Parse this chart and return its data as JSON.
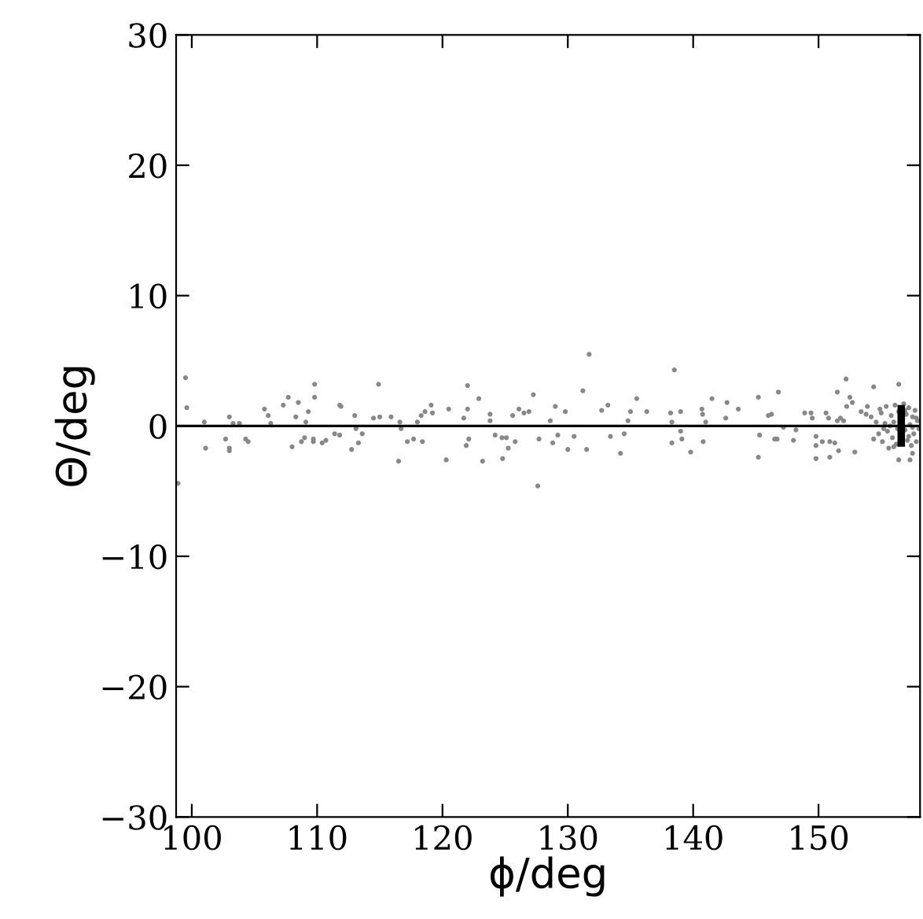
{
  "chart_data": {
    "type": "scatter",
    "xlabel": "ϕ/deg",
    "ylabel": "Θ/deg",
    "xlim": [
      98.75,
      158.1
    ],
    "ylim": [
      -30,
      30
    ],
    "xticks": [
      100,
      110,
      120,
      130,
      140,
      150
    ],
    "yticks": [
      {
        "value": -30,
        "label": "−30"
      },
      {
        "value": -20,
        "label": "−20"
      },
      {
        "value": -10,
        "label": "−10"
      },
      0,
      10,
      20,
      30
    ],
    "grid": false,
    "legend": false,
    "series": [
      {
        "color": "#888888",
        "marker": "circle",
        "x": [
          99.5,
          99.6,
          98.9,
          101.0,
          101.1,
          102.7,
          103.0,
          103.0,
          103.0,
          103.3,
          103.8,
          104.3,
          104.5,
          105.8,
          106.1,
          106.3,
          107.3,
          107.7,
          108.0,
          108.3,
          108.5,
          108.75,
          109.0,
          109.1,
          109.3,
          109.8,
          109.8,
          109.7,
          109.7,
          110.4,
          110.7,
          111.4,
          111.8,
          111.8,
          111.9,
          112.75,
          113.0,
          113.1,
          113.3,
          113.6,
          114.5,
          114.9,
          115.0,
          115.9,
          116.5,
          116.6,
          116.7,
          117.2,
          117.7,
          118.0,
          118.3,
          118.6,
          118.4,
          119.1,
          119.2,
          120.3,
          120.5,
          121.7,
          122.0,
          122.0,
          121.9,
          122.1,
          122.9,
          123.2,
          123.8,
          123.8,
          124.2,
          124.75,
          124.8,
          125.1,
          125.25,
          125.6,
          125.8,
          126.1,
          126.5,
          126.9,
          127.25,
          127.6,
          127.7,
          128.6,
          128.8,
          129.0,
          129.2,
          129.8,
          130.0,
          130.5,
          131.2,
          131.5,
          131.7,
          132.7,
          133.2,
          133.4,
          134.2,
          134.5,
          134.8,
          135.0,
          135.5,
          136.3,
          138.2,
          138.3,
          138.3,
          138.5,
          139.0,
          139.0,
          139.1,
          139.8,
          140.7,
          140.75,
          140.8,
          141.0,
          141.5,
          142.7,
          142.6,
          143.6,
          145.2,
          145.2,
          145.3,
          146.0,
          146.25,
          146.5,
          146.7,
          146.8,
          147.2,
          148.0,
          148.2,
          148.9,
          149.4,
          149.5,
          149.8,
          149.8,
          149.8,
          150.3,
          150.9,
          150.9,
          151.3,
          150.6,
          150.8,
          151.5,
          151.75,
          152.0,
          151.5,
          152.2,
          152.25,
          152.5,
          152.7,
          152.9,
          151.6,
          154.4,
          156.4,
          153.4,
          153.8,
          153.9,
          157.3,
          156.4,
          157.5,
          154.6,
          154.8,
          155.0,
          155.1,
          155.3,
          155.4,
          155.5,
          155.6,
          155.8,
          155.9,
          156.0,
          156.1,
          156.2,
          156.3,
          156.4,
          156.8,
          156.9,
          157.0,
          157.1,
          157.2,
          157.3,
          157.4,
          157.5,
          157.6,
          157.7,
          157.8,
          157.9,
          158.0,
          154.9,
          155.2,
          155.7,
          156.0,
          156.9,
          157.2,
          157.5,
          157.8,
          154.4,
          154.2
        ],
        "values": [
          3.7,
          1.4,
          -4.4,
          0.3,
          -1.7,
          -1.0,
          -1.7,
          -1.9,
          0.7,
          0.2,
          0.2,
          -1.0,
          -1.2,
          1.3,
          0.8,
          0.2,
          1.6,
          2.2,
          -1.6,
          0.7,
          1.8,
          -1.2,
          -0.9,
          0.3,
          1.1,
          3.2,
          2.2,
          -1.0,
          -1.2,
          -1.3,
          -1.1,
          -0.6,
          -0.7,
          1.6,
          1.5,
          -1.8,
          0.8,
          -0.2,
          -1.3,
          -0.6,
          0.6,
          3.2,
          0.7,
          0.7,
          -2.7,
          0.3,
          -0.2,
          -1.2,
          -1.0,
          0.3,
          0.8,
          1.1,
          -1.2,
          1.6,
          1.0,
          -2.6,
          1.3,
          0.6,
          3.1,
          1.3,
          -1.5,
          -1.0,
          2.1,
          -2.7,
          0.9,
          0.4,
          -0.7,
          -0.9,
          -2.5,
          -0.9,
          -1.7,
          0.8,
          -1.2,
          1.3,
          1.0,
          1.1,
          2.4,
          -4.6,
          -1.0,
          0.4,
          -1.3,
          1.5,
          -0.7,
          1.1,
          -1.8,
          -0.8,
          2.7,
          -1.8,
          5.5,
          1.2,
          1.6,
          -0.8,
          -2.1,
          -0.6,
          0.4,
          1.1,
          2.1,
          1.1,
          1.0,
          0.3,
          -1.3,
          4.3,
          1.1,
          -0.4,
          -1.0,
          -2.0,
          1.3,
          0.9,
          -1.2,
          0.3,
          2.1,
          1.8,
          0.6,
          1.3,
          2.2,
          -2.4,
          -0.7,
          0.8,
          0.9,
          -1.0,
          -1.0,
          2.6,
          -0.1,
          -1.1,
          -0.3,
          1.0,
          1.0,
          0.6,
          -0.8,
          -1.5,
          -2.5,
          -1.2,
          -1.2,
          -2.4,
          -1.3,
          1.0,
          0.6,
          0.4,
          0.6,
          0.4,
          2.6,
          3.6,
          1.5,
          2.2,
          1.8,
          -2.0,
          -1.9,
          3.0,
          3.2,
          1.1,
          0.9,
          1.5,
          -2.6,
          -2.6,
          -2.1,
          0.3,
          -0.6,
          1.0,
          -1.2,
          0.2,
          1.5,
          -0.4,
          -1.7,
          0.8,
          -0.9,
          0.3,
          1.6,
          -1.4,
          -0.2,
          1.1,
          1.7,
          -0.3,
          0.9,
          -1.1,
          1.4,
          0.1,
          -1.5,
          0.7,
          -0.6,
          1.2,
          -1.2,
          0.4,
          -0.2,
          1.3,
          -0.2,
          0.0,
          -1.6,
          1.2,
          -0.8,
          -0.1,
          0.6,
          -1.0,
          0.7
        ]
      },
      {
        "type": "line",
        "color": "#000000",
        "marker": "none",
        "line_style": "solid",
        "x": [
          98.75,
          158.1
        ],
        "values": [
          0,
          0
        ]
      },
      {
        "type": "bar",
        "color": "#000000",
        "x": [
          156.6
        ],
        "base": [
          -1.6
        ],
        "values": [
          3.2
        ]
      }
    ]
  }
}
